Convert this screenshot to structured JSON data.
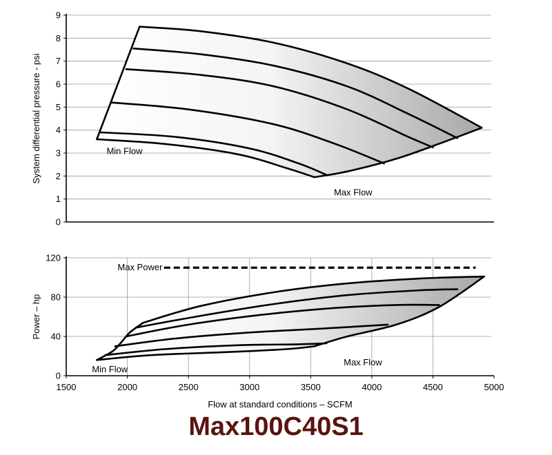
{
  "chart_data": [
    {
      "type": "line",
      "title": "",
      "xlabel": "",
      "ylabel": "System differential pressure - psi",
      "xlim": [
        1500,
        5000
      ],
      "ylim": [
        0,
        9
      ],
      "yticks": [
        0,
        1,
        2,
        3,
        4,
        5,
        6,
        7,
        8,
        9
      ],
      "grid": true,
      "annotations": [
        {
          "text": "Min Flow",
          "x": 1830,
          "y": 3.1
        },
        {
          "text": "Max Flow",
          "x": 3690,
          "y": 1.3
        }
      ],
      "envelope": {
        "fill": "gradient white-to-grey",
        "min_flow_line": {
          "x": [
            1750,
            2100
          ],
          "y": [
            3.6,
            8.5
          ]
        },
        "max_flow_line": {
          "x": [
            3530,
            3800,
            4200,
            4600,
            4900
          ],
          "y": [
            1.95,
            2.2,
            2.75,
            3.5,
            4.1
          ]
        }
      },
      "series": [
        {
          "x": [
            2100,
            2600,
            3200,
            3800,
            4300,
            4900
          ],
          "y": [
            8.5,
            8.3,
            7.8,
            6.9,
            5.8,
            4.1
          ]
        },
        {
          "x": [
            2050,
            2600,
            3200,
            3800,
            4300,
            4700
          ],
          "y": [
            7.55,
            7.3,
            6.8,
            5.9,
            4.7,
            3.65
          ]
        },
        {
          "x": [
            1990,
            2600,
            3200,
            3800,
            4300,
            4500
          ],
          "y": [
            6.65,
            6.4,
            5.9,
            4.9,
            3.7,
            3.25
          ]
        },
        {
          "x": [
            1870,
            2500,
            3200,
            3700,
            4100
          ],
          "y": [
            5.2,
            4.9,
            4.25,
            3.4,
            2.55
          ]
        },
        {
          "x": [
            1780,
            2400,
            3000,
            3400,
            3630
          ],
          "y": [
            3.9,
            3.7,
            3.2,
            2.55,
            2.05
          ]
        },
        {
          "x": [
            1750,
            2300,
            2900,
            3300,
            3530
          ],
          "y": [
            3.6,
            3.4,
            2.95,
            2.35,
            1.95
          ]
        }
      ]
    },
    {
      "type": "line",
      "title": "",
      "xlabel": "Flow at standard conditions – SCFM",
      "ylabel": "Power – hp",
      "xlim": [
        1500,
        5000
      ],
      "ylim": [
        0,
        120
      ],
      "xticks": [
        1500,
        2000,
        2500,
        3000,
        3500,
        4000,
        4500,
        5000
      ],
      "yticks": [
        0,
        40,
        80,
        120
      ],
      "grid": true,
      "annotations": [
        {
          "text": "Max Power",
          "x": 1920,
          "y": 111
        },
        {
          "text": "Min Flow",
          "x": 1710,
          "y": 7
        },
        {
          "text": "Max Flow",
          "x": 3770,
          "y": 14
        }
      ],
      "max_power": {
        "value": 110,
        "x": [
          2300,
          4850
        ],
        "style": "dashed"
      },
      "envelope": {
        "fill": "gradient white-to-grey",
        "min_flow_line": {
          "x": [
            1750,
            1880,
            1950,
            2020,
            2130
          ],
          "y": [
            16,
            25,
            34,
            44,
            54
          ]
        },
        "max_flow_line": {
          "x": [
            3530,
            3800,
            4200,
            4550,
            4920
          ],
          "y": [
            30,
            40,
            52,
            70,
            101
          ]
        }
      },
      "series": [
        {
          "x": [
            2130,
            2600,
            3200,
            3800,
            4400,
            4920
          ],
          "y": [
            54,
            71,
            85,
            94,
            99,
            101
          ]
        },
        {
          "x": [
            2070,
            2600,
            3200,
            3800,
            4400,
            4700
          ],
          "y": [
            49,
            61,
            73,
            82,
            87,
            88
          ]
        },
        {
          "x": [
            1990,
            2500,
            3100,
            3700,
            4200,
            4550
          ],
          "y": [
            40,
            52,
            62,
            69,
            72,
            72
          ]
        },
        {
          "x": [
            1900,
            2400,
            3000,
            3600,
            4130
          ],
          "y": [
            30,
            38,
            44,
            48,
            52
          ]
        },
        {
          "x": [
            1820,
            2300,
            2900,
            3400,
            3630
          ],
          "y": [
            21,
            27,
            31,
            32,
            33
          ]
        },
        {
          "x": [
            1750,
            2200,
            2800,
            3300,
            3530
          ],
          "y": [
            16,
            21,
            24,
            27,
            30
          ]
        }
      ]
    }
  ],
  "model_title": "Max100C40S1",
  "colors": {
    "title": "#5a1410",
    "fill_light": "#ffffff",
    "fill_dark": "#a8a8a8",
    "grid": "#9a9a9a",
    "curve": "#000000"
  }
}
